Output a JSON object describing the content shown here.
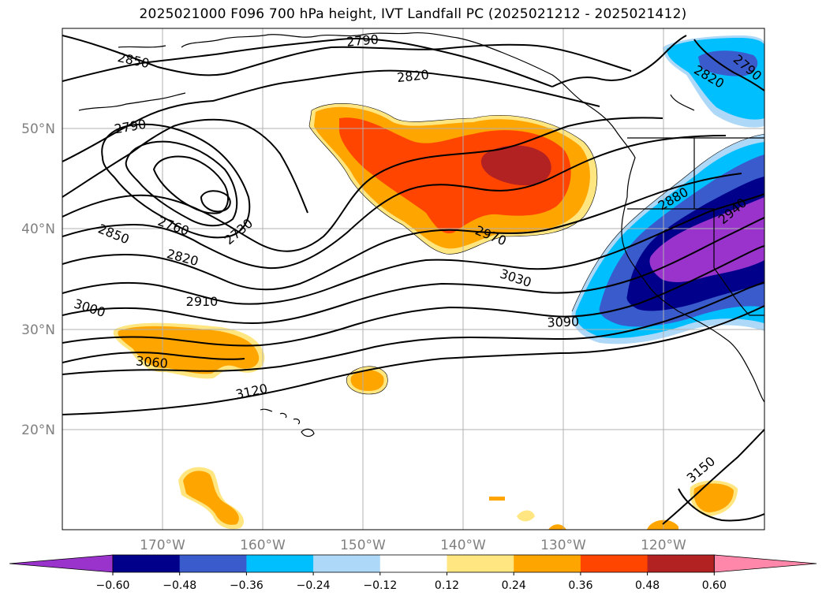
{
  "title": "2025021000 F096 700 hPa height, IVT Landfall PC (2025021212 - 2025021412)",
  "axes": {
    "lat_labels": [
      "50°N",
      "40°N",
      "30°N",
      "20°N"
    ],
    "lon_labels": [
      "170°W",
      "160°W",
      "150°W",
      "140°W",
      "130°W",
      "120°W"
    ]
  },
  "contour_labels": [
    "2850",
    "2790",
    "2820",
    "2790",
    "2820",
    "2790",
    "2760",
    "2730",
    "2850",
    "2820",
    "2910",
    "3000",
    "3060",
    "3120",
    "2970",
    "3030",
    "3090",
    "2880",
    "2940",
    "3150"
  ],
  "colorbar": {
    "ticks": [
      "−0.60",
      "−0.48",
      "−0.36",
      "−0.24",
      "−0.12",
      "0.12",
      "0.24",
      "0.36",
      "0.48",
      "0.60"
    ],
    "colors": [
      "#9933cc",
      "#00008b",
      "#3a5bcc",
      "#00bfff",
      "#add8f7",
      "#ffffff",
      "#ffe680",
      "#ffa500",
      "#ff4500",
      "#b22222",
      "#ff88aa"
    ]
  }
}
